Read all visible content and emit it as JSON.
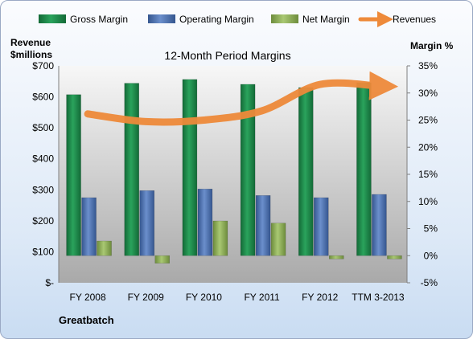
{
  "chart_data": {
    "type": "bar",
    "title": "12-Month Period Margins",
    "company": "Greatbatch",
    "categories": [
      "FY 2008",
      "FY 2009",
      "FY 2010",
      "FY 2011",
      "FY 2012",
      "TTM 3-2013"
    ],
    "y_left": {
      "label_line1": "Revenue",
      "label_line2": "$millions",
      "ylim": [
        0,
        700
      ],
      "ticks": [
        {
          "value": 0,
          "label": "$-"
        },
        {
          "value": 100,
          "label": "$100"
        },
        {
          "value": 200,
          "label": "$200"
        },
        {
          "value": 300,
          "label": "$300"
        },
        {
          "value": 400,
          "label": "$400"
        },
        {
          "value": 500,
          "label": "$500"
        },
        {
          "value": 600,
          "label": "$600"
        },
        {
          "value": 700,
          "label": "$700"
        }
      ]
    },
    "y_right": {
      "label": "Margin %",
      "ylim": [
        -5,
        35
      ],
      "ticks": [
        {
          "value": -5,
          "label": "-5%"
        },
        {
          "value": 0,
          "label": "0%"
        },
        {
          "value": 5,
          "label": "5%"
        },
        {
          "value": 10,
          "label": "10%"
        },
        {
          "value": 15,
          "label": "15%"
        },
        {
          "value": 20,
          "label": "20%"
        },
        {
          "value": 25,
          "label": "25%"
        },
        {
          "value": 30,
          "label": "30%"
        },
        {
          "value": 35,
          "label": "35%"
        }
      ]
    },
    "series": [
      {
        "name": "Gross Margin",
        "axis": "right",
        "kind": "bar",
        "color": "#1f8a4c",
        "values": [
          29.7,
          31.8,
          32.5,
          31.6,
          31.0,
          31.9
        ]
      },
      {
        "name": "Operating Margin",
        "axis": "right",
        "kind": "bar",
        "color": "#4a6fb5",
        "values": [
          10.7,
          12.0,
          12.3,
          11.1,
          10.7,
          11.3
        ]
      },
      {
        "name": "Net Margin",
        "axis": "right",
        "kind": "bar",
        "color": "#8fb05a",
        "values": [
          2.7,
          -1.4,
          6.4,
          6.0,
          -0.6,
          -0.6
        ]
      },
      {
        "name": "Revenues",
        "axis": "left",
        "kind": "line",
        "color": "#ee8a3a",
        "values": [
          545,
          520,
          525,
          555,
          640,
          635
        ]
      }
    ],
    "legend_position": "top",
    "grid": false
  }
}
